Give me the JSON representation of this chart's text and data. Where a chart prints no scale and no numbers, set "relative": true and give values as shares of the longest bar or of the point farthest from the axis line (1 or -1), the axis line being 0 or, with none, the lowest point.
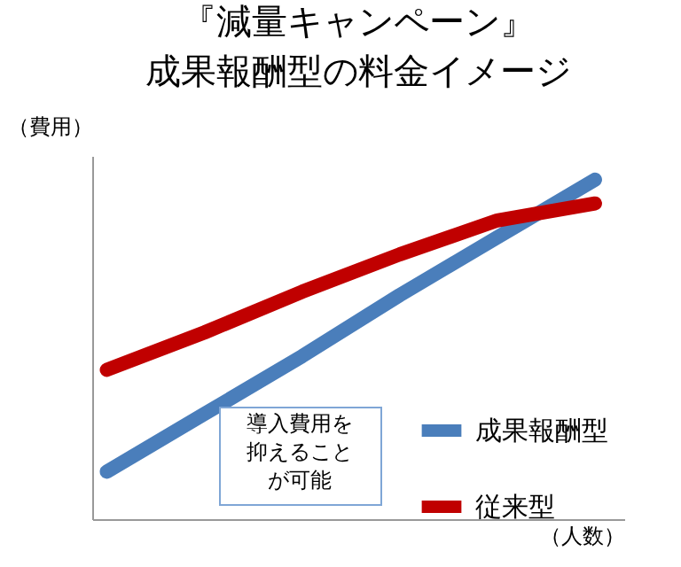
{
  "chart_data": {
    "type": "line",
    "title": "『減量キャンペーン』",
    "subtitle": "成果報酬型の料金イメージ",
    "xlabel": "（人数）",
    "ylabel": "（費用）",
    "relative": true,
    "tick_labels": false,
    "legend": "bottom right",
    "categories": [
      null,
      null,
      null,
      null,
      null,
      null
    ],
    "series": [
      {
        "name": "成果報酬型",
        "color": "#4a7ebb",
        "values": [
          0.14,
          0.31,
          0.48,
          0.66,
          0.83,
          1.0
        ]
      },
      {
        "name": "従来型",
        "color": "#c00000",
        "values": [
          0.44,
          0.55,
          0.67,
          0.78,
          0.88,
          0.93
        ]
      }
    ],
    "annotations": [
      "導入費用を抑えることが可能"
    ]
  }
}
